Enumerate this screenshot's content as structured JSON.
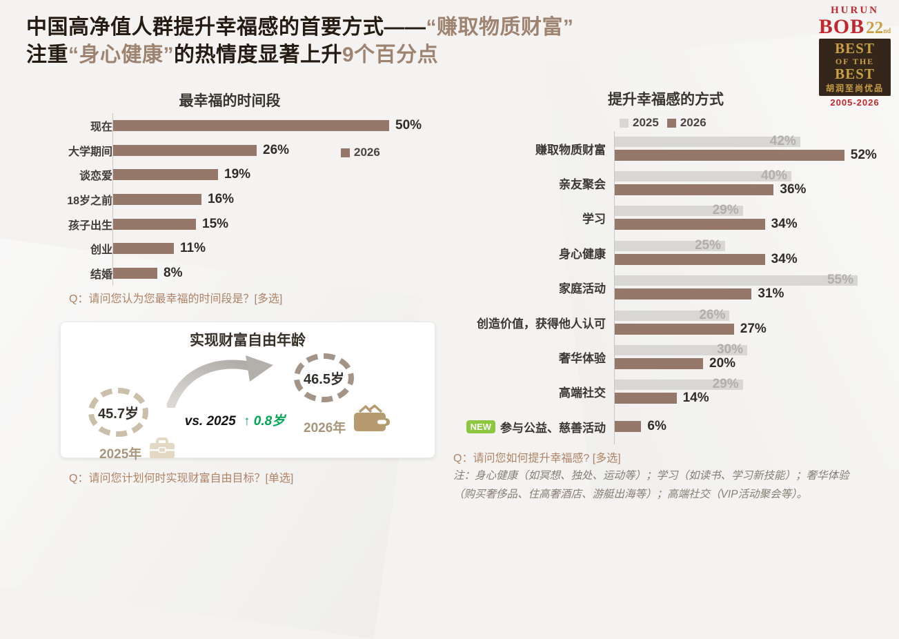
{
  "header": {
    "line1_dark": "中国高净值人群提升幸福感的首要方式——",
    "line1_highlight": "“赚取物质财富”",
    "line2_dark1": "注重",
    "line2_highlight1": "“身心健康”",
    "line2_dark2": "的热情度显著上升",
    "line2_highlight2": "9个百分点"
  },
  "logo": {
    "brand": "HURUN",
    "bob": "BOB",
    "edition": "22",
    "edition_suffix": "nd",
    "best_line1": "BEST",
    "best_line2": "OF THE",
    "best_line3": "BEST",
    "chinese": "胡润至尚优品",
    "years": "2005-2026"
  },
  "wealth_card": {
    "title": "实现财富自由年龄",
    "before": {
      "age": "45.7岁",
      "year": "2025年"
    },
    "after": {
      "age": "46.5岁",
      "year": "2026年"
    },
    "vs_label": "vs. 2025",
    "change_label": "↑ 0.8岁",
    "question": "Q：请问您计划何时实现财富自由目标？[单选]"
  },
  "colors": {
    "series_2026_brown": "#96786A",
    "series_2025_gray": "#D9D7D5",
    "highlight_brown": "#9E8370",
    "question_text": "#B08264",
    "green_up": "#00A651",
    "new_badge_green": "#8DC63F",
    "logo_red": "#C1272D",
    "logo_gold": "#C9A043"
  },
  "chart_data": [
    {
      "type": "bar",
      "orientation": "horizontal",
      "title": "最幸福的时间段",
      "legend": [
        "2026"
      ],
      "legend_position": "right",
      "categories": [
        "现在",
        "大学期间",
        "谈恋爱",
        "18岁之前",
        "孩子出生",
        "创业",
        "结婚"
      ],
      "values": [
        50,
        26,
        19,
        16,
        15,
        11,
        8
      ],
      "unit": "%",
      "xlim": [
        0,
        55
      ],
      "grid": false,
      "question": "Q：请问您认为您最幸福的时间段是？[多选]"
    },
    {
      "type": "bar",
      "orientation": "horizontal",
      "title": "提升幸福感的方式",
      "legend": [
        "2025",
        "2026"
      ],
      "legend_position": "top",
      "categories": [
        "赚取物质财富",
        "亲友聚会",
        "学习",
        "身心健康",
        "家庭活动",
        "创造价值，获得他人认可",
        "奢华体验",
        "高端社交",
        "参与公益、慈善活动"
      ],
      "series": [
        {
          "name": "2025",
          "values": [
            42,
            40,
            29,
            25,
            55,
            26,
            30,
            29,
            null
          ]
        },
        {
          "name": "2026",
          "values": [
            52,
            36,
            34,
            34,
            31,
            27,
            20,
            14,
            6
          ]
        }
      ],
      "unit": "%",
      "xlim": [
        0,
        60
      ],
      "grid": false,
      "new_badge_text": "NEW",
      "new_badge_category": "参与公益、慈善活动",
      "question": "Q：请问您如何提升幸福感? [多选]",
      "note": "注：身心健康（如冥想、独处、运动等）；学习（如读书、学习新技能）；奢华体验（购买奢侈品、住高奢酒店、游艇出海等）；高端社交（VIP活动聚会等）。"
    }
  ]
}
